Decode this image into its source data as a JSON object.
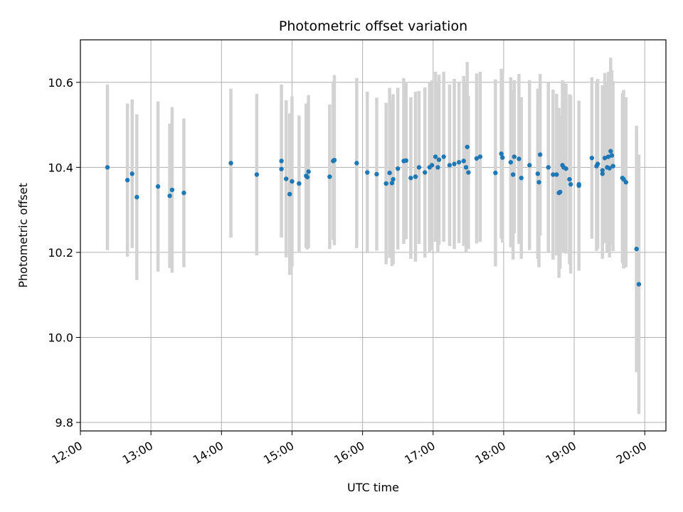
{
  "chart_data": {
    "type": "scatter",
    "title": "Photometric offset variation",
    "xlabel": "UTC time",
    "ylabel": "Photometric offset",
    "x_ticks": [
      "12:00",
      "13:00",
      "14:00",
      "15:00",
      "16:00",
      "17:00",
      "18:00",
      "19:00",
      "20:00"
    ],
    "y_ticks": [
      "9.8",
      "10.0",
      "10.2",
      "10.4",
      "10.6"
    ],
    "xlim": [
      "12:00",
      "20:18"
    ],
    "ylim": [
      9.78,
      10.7
    ],
    "grid": true,
    "colors": {
      "points": "#1f77b4",
      "errorbars": "#d3d3d3",
      "grid": "#b0b0b0"
    },
    "series": [
      {
        "points": [
          {
            "t": "12:23",
            "y": 10.4,
            "err": 0.195
          },
          {
            "t": "12:40",
            "y": 10.37,
            "err": 0.18
          },
          {
            "t": "12:44",
            "y": 10.385,
            "err": 0.175
          },
          {
            "t": "12:48",
            "y": 10.33,
            "err": 0.195
          },
          {
            "t": "13:06",
            "y": 10.355,
            "err": 0.2
          },
          {
            "t": "13:16",
            "y": 10.333,
            "err": 0.17
          },
          {
            "t": "13:18",
            "y": 10.347,
            "err": 0.195
          },
          {
            "t": "13:28",
            "y": 10.34,
            "err": 0.175
          },
          {
            "t": "14:08",
            "y": 10.41,
            "err": 0.175
          },
          {
            "t": "14:30",
            "y": 10.383,
            "err": 0.19
          },
          {
            "t": "14:51",
            "y": 10.415,
            "err": 0.18
          },
          {
            "t": "14:51",
            "y": 10.396,
            "err": 0.16
          },
          {
            "t": "14:55",
            "y": 10.373,
            "err": 0.185
          },
          {
            "t": "14:58",
            "y": 10.337,
            "err": 0.19
          },
          {
            "t": "15:00",
            "y": 10.367,
            "err": 0.2
          },
          {
            "t": "15:06",
            "y": 10.362,
            "err": 0.16
          },
          {
            "t": "15:12",
            "y": 10.38,
            "err": 0.17
          },
          {
            "t": "15:13",
            "y": 10.377,
            "err": 0.17
          },
          {
            "t": "15:14",
            "y": 10.39,
            "err": 0.18
          },
          {
            "t": "15:32",
            "y": 10.378,
            "err": 0.17
          },
          {
            "t": "15:35",
            "y": 10.415,
            "err": 0.185
          },
          {
            "t": "15:36",
            "y": 10.417,
            "err": 0.2
          },
          {
            "t": "15:55",
            "y": 10.41,
            "err": 0.2
          },
          {
            "t": "16:04",
            "y": 10.388,
            "err": 0.19
          },
          {
            "t": "16:12",
            "y": 10.384,
            "err": 0.18
          },
          {
            "t": "16:20",
            "y": 10.362,
            "err": 0.19
          },
          {
            "t": "16:23",
            "y": 10.387,
            "err": 0.2
          },
          {
            "t": "16:25",
            "y": 10.363,
            "err": 0.195
          },
          {
            "t": "16:26",
            "y": 10.372,
            "err": 0.2
          },
          {
            "t": "16:30",
            "y": 10.397,
            "err": 0.19
          },
          {
            "t": "16:35",
            "y": 10.415,
            "err": 0.195
          },
          {
            "t": "16:37",
            "y": 10.416,
            "err": 0.185
          },
          {
            "t": "16:41",
            "y": 10.375,
            "err": 0.19
          },
          {
            "t": "16:45",
            "y": 10.378,
            "err": 0.2
          },
          {
            "t": "16:48",
            "y": 10.4,
            "err": 0.18
          },
          {
            "t": "16:53",
            "y": 10.388,
            "err": 0.2
          },
          {
            "t": "16:57",
            "y": 10.4,
            "err": 0.2
          },
          {
            "t": "16:59",
            "y": 10.405,
            "err": 0.2
          },
          {
            "t": "17:02",
            "y": 10.425,
            "err": 0.2
          },
          {
            "t": "17:04",
            "y": 10.4,
            "err": 0.2
          },
          {
            "t": "17:05",
            "y": 10.418,
            "err": 0.2
          },
          {
            "t": "17:09",
            "y": 10.425,
            "err": 0.2
          },
          {
            "t": "17:14",
            "y": 10.405,
            "err": 0.19
          },
          {
            "t": "17:18",
            "y": 10.408,
            "err": 0.2
          },
          {
            "t": "17:22",
            "y": 10.412,
            "err": 0.19
          },
          {
            "t": "17:26",
            "y": 10.415,
            "err": 0.2
          },
          {
            "t": "17:28",
            "y": 10.4,
            "err": 0.2
          },
          {
            "t": "17:29",
            "y": 10.448,
            "err": 0.2
          },
          {
            "t": "17:30",
            "y": 10.388,
            "err": 0.18
          },
          {
            "t": "17:37",
            "y": 10.421,
            "err": 0.2
          },
          {
            "t": "17:40",
            "y": 10.425,
            "err": 0.2
          },
          {
            "t": "17:53",
            "y": 10.387,
            "err": 0.22
          },
          {
            "t": "17:58",
            "y": 10.432,
            "err": 0.2
          },
          {
            "t": "17:59",
            "y": 10.423,
            "err": 0.2
          },
          {
            "t": "18:06",
            "y": 10.412,
            "err": 0.2
          },
          {
            "t": "18:08",
            "y": 10.383,
            "err": 0.2
          },
          {
            "t": "18:09",
            "y": 10.425,
            "err": 0.18
          },
          {
            "t": "18:13",
            "y": 10.42,
            "err": 0.2
          },
          {
            "t": "18:15",
            "y": 10.375,
            "err": 0.19
          },
          {
            "t": "18:22",
            "y": 10.405,
            "err": 0.2
          },
          {
            "t": "18:29",
            "y": 10.385,
            "err": 0.2
          },
          {
            "t": "18:30",
            "y": 10.365,
            "err": 0.2
          },
          {
            "t": "18:31",
            "y": 10.43,
            "err": 0.19
          },
          {
            "t": "18:38",
            "y": 10.4,
            "err": 0.2
          },
          {
            "t": "18:42",
            "y": 10.383,
            "err": 0.2
          },
          {
            "t": "18:45",
            "y": 10.383,
            "err": 0.19
          },
          {
            "t": "18:47",
            "y": 10.34,
            "err": 0.2
          },
          {
            "t": "18:48",
            "y": 10.342,
            "err": 0.18
          },
          {
            "t": "18:50",
            "y": 10.405,
            "err": 0.2
          },
          {
            "t": "18:51",
            "y": 10.4,
            "err": 0.2
          },
          {
            "t": "18:53",
            "y": 10.397,
            "err": 0.2
          },
          {
            "t": "18:56",
            "y": 10.372,
            "err": 0.2
          },
          {
            "t": "18:57",
            "y": 10.36,
            "err": 0.21
          },
          {
            "t": "19:04",
            "y": 10.357,
            "err": 0.2
          },
          {
            "t": "19:04",
            "y": 10.36,
            "err": 0.19
          },
          {
            "t": "19:15",
            "y": 10.422,
            "err": 0.19
          },
          {
            "t": "19:19",
            "y": 10.403,
            "err": 0.2
          },
          {
            "t": "19:20",
            "y": 10.408,
            "err": 0.2
          },
          {
            "t": "19:24",
            "y": 10.393,
            "err": 0.2
          },
          {
            "t": "19:24",
            "y": 10.385,
            "err": 0.2
          },
          {
            "t": "19:26",
            "y": 10.422,
            "err": 0.2
          },
          {
            "t": "19:28",
            "y": 10.4,
            "err": 0.2
          },
          {
            "t": "19:29",
            "y": 10.425,
            "err": 0.2
          },
          {
            "t": "19:30",
            "y": 10.398,
            "err": 0.21
          },
          {
            "t": "19:31",
            "y": 10.438,
            "err": 0.22
          },
          {
            "t": "19:32",
            "y": 10.428,
            "err": 0.2
          },
          {
            "t": "19:33",
            "y": 10.403,
            "err": 0.2
          },
          {
            "t": "19:41",
            "y": 10.375,
            "err": 0.2
          },
          {
            "t": "19:42",
            "y": 10.372,
            "err": 0.21
          },
          {
            "t": "19:44",
            "y": 10.365,
            "err": 0.2
          },
          {
            "t": "19:53",
            "y": 10.208,
            "err": 0.29
          },
          {
            "t": "19:55",
            "y": 10.125,
            "err": 0.305
          }
        ]
      }
    ]
  }
}
